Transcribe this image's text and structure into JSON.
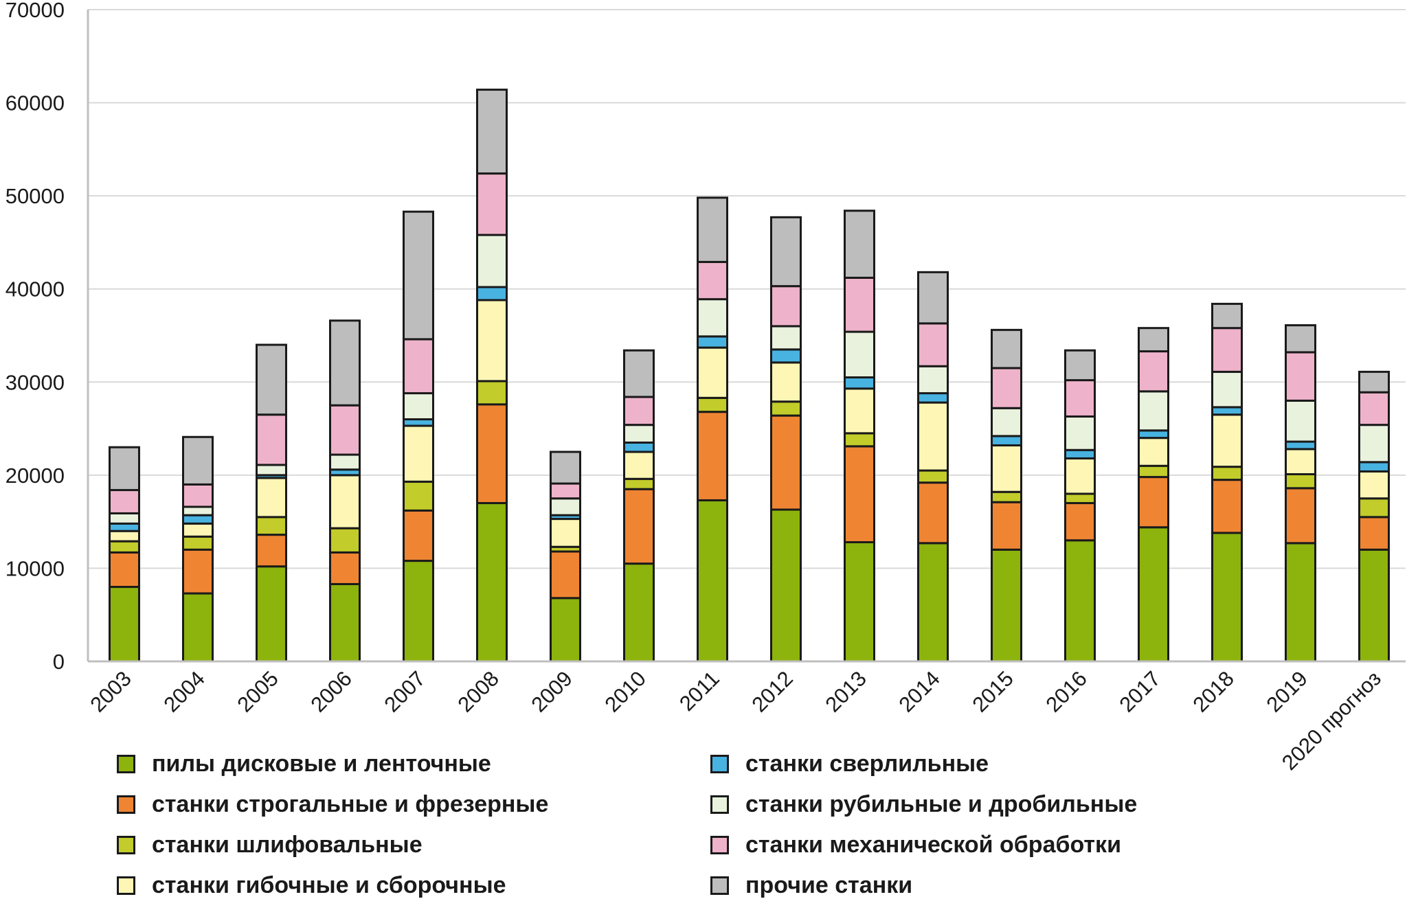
{
  "chart_data": {
    "type": "bar",
    "stacked": true,
    "categories": [
      "2003",
      "2004",
      "2005",
      "2006",
      "2007",
      "2008",
      "2009",
      "2010",
      "2011",
      "2012",
      "2013",
      "2014",
      "2015",
      "2016",
      "2017",
      "2018",
      "2019",
      "2020 прогноз"
    ],
    "ylim": [
      0,
      70000
    ],
    "yticks": [
      "0",
      "10000",
      "20000",
      "30000",
      "40000",
      "50000",
      "60000",
      "70000"
    ],
    "ytick_values": [
      0,
      10000,
      20000,
      30000,
      40000,
      50000,
      60000,
      70000
    ],
    "grid": true,
    "legend_position": "bottom",
    "series": [
      {
        "name": "пилы дисковые и ленточные",
        "color": "#8db30d",
        "values": [
          8000,
          7300,
          10200,
          8300,
          10800,
          17000,
          6800,
          10500,
          17300,
          16300,
          12800,
          12700,
          12000,
          13000,
          14400,
          13800,
          12700,
          12000
        ]
      },
      {
        "name": "станки строгальные и фрезерные",
        "color": "#ef8532",
        "values": [
          3700,
          4700,
          3400,
          3400,
          5400,
          10600,
          5000,
          8000,
          9500,
          10100,
          10300,
          6500,
          5100,
          4000,
          5400,
          5700,
          5900,
          3500
        ]
      },
      {
        "name": "станки шлифовальные",
        "color": "#c2cc2a",
        "values": [
          1200,
          1400,
          1900,
          2600,
          3100,
          2500,
          500,
          1100,
          1500,
          1500,
          1400,
          1300,
          1100,
          1000,
          1200,
          1400,
          1500,
          2000
        ]
      },
      {
        "name": "станки гибочные и сборочные",
        "color": "#fdf6b4",
        "values": [
          1100,
          1400,
          4200,
          5700,
          6000,
          8700,
          3000,
          2900,
          5400,
          4200,
          4800,
          7300,
          5000,
          3800,
          3000,
          5600,
          2700,
          2900
        ]
      },
      {
        "name": "станки сверлильные",
        "color": "#48b3e1",
        "values": [
          800,
          900,
          300,
          600,
          700,
          1400,
          400,
          1000,
          1200,
          1400,
          1200,
          1000,
          1000,
          900,
          800,
          800,
          800,
          1000
        ]
      },
      {
        "name": "станки рубильные и дробильные",
        "color": "#e9f2dd",
        "values": [
          1100,
          900,
          1100,
          1600,
          2800,
          5600,
          1800,
          1900,
          4000,
          2500,
          4900,
          2900,
          3000,
          3600,
          4200,
          3800,
          4400,
          4000
        ]
      },
      {
        "name": "станки механической обработки",
        "color": "#eeb3ca",
        "values": [
          2500,
          2400,
          5400,
          5300,
          5800,
          6600,
          1600,
          3000,
          4000,
          4300,
          5800,
          4600,
          4300,
          3900,
          4300,
          4700,
          5200,
          3500
        ]
      },
      {
        "name": "прочие станки",
        "color": "#bdbdbd",
        "values": [
          4600,
          5100,
          7500,
          9100,
          13700,
          9000,
          3400,
          5000,
          6900,
          7400,
          7200,
          5500,
          4100,
          3200,
          2500,
          2600,
          2900,
          2200
        ]
      }
    ]
  }
}
